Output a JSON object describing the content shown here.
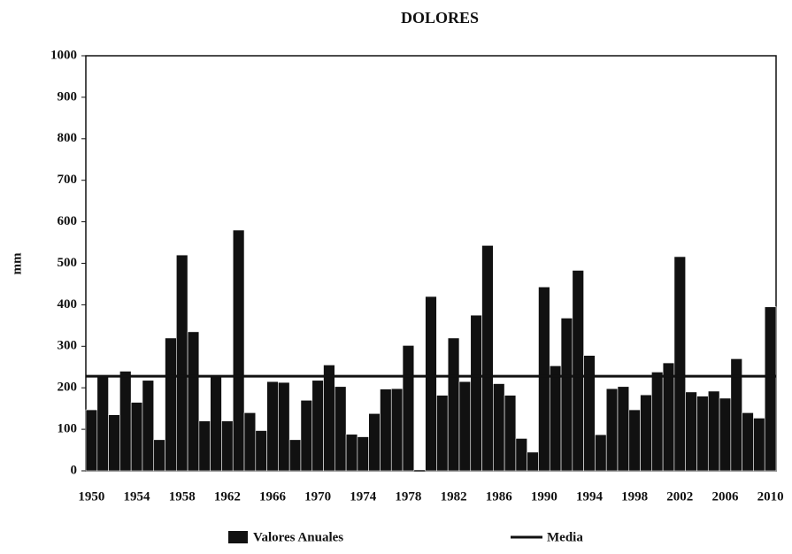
{
  "chart_data": {
    "type": "bar",
    "title": "DOLORES",
    "y_label": "mm",
    "categories": [
      "1950",
      null,
      null,
      null,
      "1954",
      null,
      null,
      null,
      "1958",
      null,
      null,
      null,
      "1962",
      null,
      null,
      null,
      "1966",
      null,
      null,
      null,
      "1970",
      null,
      null,
      null,
      "1974",
      null,
      null,
      null,
      "1978",
      null,
      null,
      null,
      "1982",
      null,
      null,
      null,
      "1986",
      null,
      null,
      null,
      "1990",
      null,
      null,
      null,
      "1994",
      null,
      null,
      null,
      "1998",
      null,
      null,
      null,
      "2002",
      null,
      null,
      null,
      "2006",
      null,
      null,
      null,
      "2010"
    ],
    "series": [
      {
        "name": "Valores Anuales",
        "color": "#111111",
        "values": [
          147,
          228,
          135,
          240,
          165,
          218,
          75,
          320,
          520,
          335,
          120,
          228,
          120,
          580,
          140,
          97,
          215,
          213,
          75,
          170,
          218,
          255,
          203,
          88,
          82,
          138,
          197,
          198,
          302,
          null,
          420,
          182,
          320,
          215,
          375,
          543,
          210,
          182,
          78,
          45,
          443,
          253,
          368,
          483,
          278,
          87,
          198,
          203,
          147,
          183,
          238,
          260,
          516,
          190,
          180,
          192,
          175,
          270,
          140,
          127,
          395
        ]
      }
    ],
    "mean": {
      "name": "Media",
      "value": 228,
      "color": "#111111"
    },
    "ylim": [
      0,
      1000
    ],
    "yticks": [
      0,
      100,
      200,
      300,
      400,
      500,
      600,
      700,
      800,
      900,
      1000
    ],
    "grid": false
  }
}
